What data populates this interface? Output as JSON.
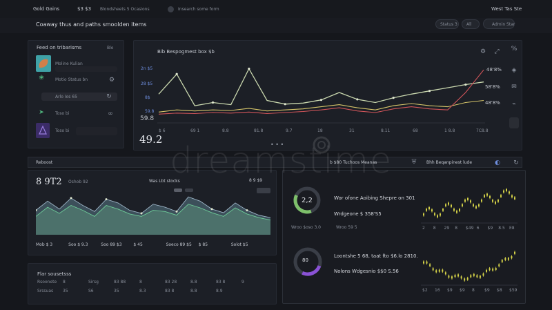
{
  "topbar": {
    "brand": "Gold Gains",
    "stat": "$3 $3",
    "nav_text": "Blondsheets 5 Ocasions",
    "search_text": "Insearch some form",
    "right_text": "West Tas Ste"
  },
  "subheader": {
    "title": "Coaway thus and paths smoolden items",
    "pill_labels": [
      "Status 3",
      "All"
    ],
    "right_label": "Admin Star"
  },
  "left_panel": {
    "title": "Feed on tribarisms",
    "corner": "Blo",
    "rows": [
      {
        "label": "Moline Kulian",
        "meta": ""
      },
      {
        "label": "Motio Status bn",
        "meta": ""
      },
      {
        "label": "Arlo Ios 65",
        "meta": ""
      },
      {
        "label": "Toso bi",
        "meta": ""
      }
    ]
  },
  "main_chart": {
    "header": "Bib Bespogmest box $b",
    "right_icons": [
      "settings-icon",
      "expand-icon",
      "percent-icon"
    ],
    "ytick_left": [
      "2n $5",
      "28 $5",
      "8$",
      "59.8"
    ],
    "xticks": [
      "$ 6",
      "69 1",
      "8.8",
      "81.8",
      "9.7",
      "18",
      "31",
      "8.11",
      "68",
      "1 8.8",
      "7C8.8"
    ],
    "big_value": "49.2",
    "right_values": [
      "48'8%",
      "58'8%",
      "48'8%"
    ],
    "pager": "• • •",
    "chart_data": {
      "type": "line",
      "x": [
        0,
        1,
        2,
        3,
        4,
        5,
        6,
        7,
        8,
        9,
        10,
        11,
        12,
        13,
        14,
        15,
        16,
        17,
        18
      ],
      "series": [
        {
          "values": [
            52,
            90,
            30,
            36,
            32,
            100,
            40,
            33,
            35,
            41,
            55,
            42,
            36,
            45,
            52,
            58,
            64,
            70,
            75
          ]
        },
        {
          "values": [
            18,
            22,
            20,
            22,
            21,
            25,
            20,
            22,
            24,
            28,
            32,
            26,
            22,
            30,
            34,
            30,
            28,
            36,
            40
          ]
        },
        {
          "values": [
            14,
            16,
            15,
            17,
            16,
            18,
            15,
            17,
            19,
            22,
            26,
            20,
            17,
            24,
            28,
            24,
            22,
            55,
            98
          ]
        }
      ],
      "ylim": [
        0,
        110
      ]
    },
    "colors": {
      "primary": "#c9d7ae",
      "secondary": "#d7c66a",
      "accent": "#d2555a"
    }
  },
  "section_bar": {
    "left": "Reboost",
    "center": "b $80 Tuchoos Meanas",
    "right": "Bhh Beqanpinest lude"
  },
  "bottom_left_chart": {
    "big_value": "8 9T2",
    "label": "Oshob 92",
    "mid_label": "Was Lbt stocks",
    "mid_icons": [
      "8 9 $9"
    ],
    "chart_data": {
      "type": "area",
      "x": [
        0,
        1,
        2,
        3,
        4,
        5,
        6,
        7,
        8,
        9,
        10,
        11,
        12,
        13,
        14,
        15,
        16,
        17,
        18,
        19,
        20
      ],
      "series": [
        {
          "values": [
            40,
            55,
            42,
            60,
            48,
            38,
            58,
            52,
            40,
            35,
            50,
            45,
            38,
            62,
            55,
            42,
            36,
            52,
            40,
            32,
            28
          ]
        },
        {
          "values": [
            30,
            45,
            35,
            48,
            40,
            30,
            48,
            42,
            34,
            30,
            40,
            38,
            32,
            50,
            44,
            36,
            30,
            44,
            34,
            28,
            24
          ]
        }
      ],
      "ylim": [
        0,
        70
      ]
    },
    "footer": [
      "Mob $ 3",
      "Soo $ 9.3",
      "Soo 89 $3",
      "$ 45",
      "Soeco 89 $5",
      "$ 85",
      "Solot $5"
    ]
  },
  "stats_panel": {
    "title": "Flar sousetsss",
    "rows": [
      [
        "Rsoonete",
        "8",
        "Sirsg",
        "83 88",
        "8",
        "83 28",
        "8.8",
        "83 8",
        "9"
      ],
      [
        "Srssuas",
        "35",
        "S6",
        "35",
        "8.3",
        "83 8",
        "8.8",
        "8.9"
      ]
    ]
  },
  "donut_panel": {
    "donut1_value": "2,2",
    "donut1_title": "Wor ofone Aoibing Shepre on 301",
    "donut1_sub": "Wrdgeone $ 358'S5",
    "donut1_caption": "Wroo $oso 3.0",
    "donut1_caption2": "Wroo 59 5",
    "donut2_title": "Loontshe 5 68, taat fto $6.lo 2810.",
    "donut2_sub": "Nolons Wdgesnio $$0 S.56",
    "donut2_caption": "80",
    "colors": {
      "green": "#7ec06b",
      "purple": "#8a52d6",
      "yellow": "#d4d248"
    },
    "mini1_xticks": [
      "2",
      "8",
      "29",
      "8",
      "$49",
      "6",
      "$9",
      "8.5",
      "E8"
    ],
    "mini2_xticks": [
      "$2",
      "16",
      "$9",
      "$9",
      "8",
      "$9",
      "$8",
      "$59"
    ]
  },
  "watermark": "dreamstime"
}
